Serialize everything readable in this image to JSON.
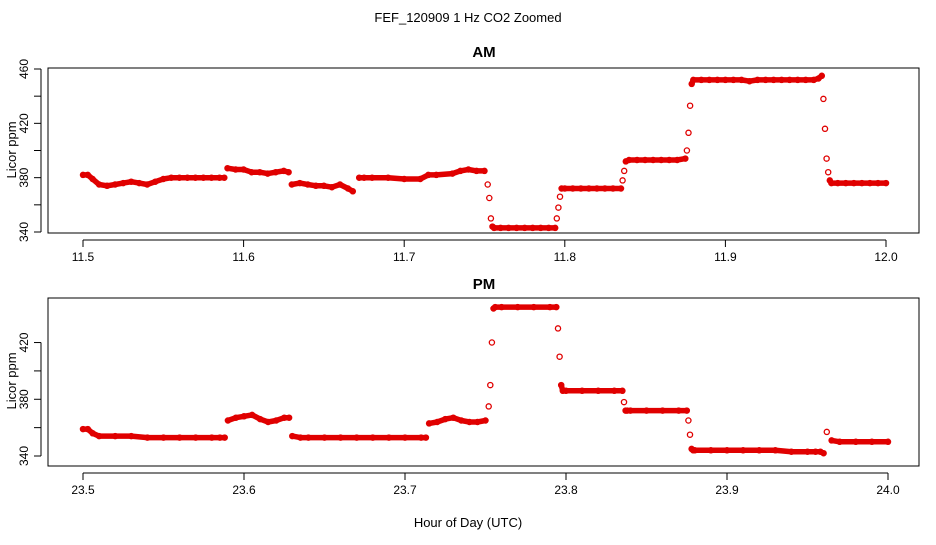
{
  "figure": {
    "title": "FEF_120909  1 Hz CO2 Zoomed",
    "xlabel": "Hour of Day (UTC)"
  },
  "chart_data": [
    {
      "type": "scatter",
      "title": "AM",
      "xlabel": "",
      "ylabel": "Licor ppm",
      "xlim": [
        11.5,
        12.0
      ],
      "ylim": [
        340,
        460
      ],
      "xticks": [
        11.5,
        11.6,
        11.7,
        11.8,
        11.9,
        12.0
      ],
      "xtick_labels": [
        "11.5",
        "11.6",
        "11.7",
        "11.8",
        "11.9",
        "12.0"
      ],
      "yticks": [
        340,
        360,
        380,
        400,
        420,
        440,
        460
      ],
      "ytick_labels": [
        "340",
        "",
        "380",
        "",
        "420",
        "",
        "460"
      ],
      "color": "#e00000",
      "marker": "open-circle",
      "grid": false,
      "series": [
        {
          "x": [
            11.5,
            11.503,
            11.506,
            11.51,
            11.515,
            11.52,
            11.525,
            11.53,
            11.535,
            11.54,
            11.545,
            11.55,
            11.555,
            11.56,
            11.565,
            11.57,
            11.575,
            11.58,
            11.585,
            11.588,
            11.59,
            11.595,
            11.6,
            11.605,
            11.61,
            11.615,
            11.62,
            11.625,
            11.628,
            11.63,
            11.635,
            11.64,
            11.645,
            11.65,
            11.655,
            11.66,
            11.665,
            11.668,
            11.672,
            11.675,
            11.68,
            11.69,
            11.7,
            11.71,
            11.715,
            11.72,
            11.73,
            11.735,
            11.74,
            11.745,
            11.75,
            11.752,
            11.753,
            11.754,
            11.755,
            11.756,
            11.76,
            11.765,
            11.77,
            11.775,
            11.78,
            11.785,
            11.79,
            11.794,
            11.795,
            11.796,
            11.797,
            11.798,
            11.8,
            11.805,
            11.81,
            11.815,
            11.82,
            11.825,
            11.83,
            11.835,
            11.836,
            11.837,
            11.838,
            11.84,
            11.845,
            11.85,
            11.855,
            11.86,
            11.865,
            11.87,
            11.875,
            11.876,
            11.877,
            11.878,
            11.879,
            11.88,
            11.885,
            11.89,
            11.895,
            11.9,
            11.905,
            11.91,
            11.915,
            11.92,
            11.925,
            11.93,
            11.935,
            11.94,
            11.945,
            11.95,
            11.955,
            11.958,
            11.96,
            11.961,
            11.962,
            11.963,
            11.964,
            11.965,
            11.966,
            11.97,
            11.975,
            11.98,
            11.985,
            11.99,
            11.995,
            12.0
          ],
          "y": [
            382,
            382,
            379,
            375,
            374,
            375,
            376,
            377,
            376,
            375,
            377,
            379,
            380,
            380,
            380,
            380,
            380,
            380,
            380,
            380,
            387,
            386,
            386,
            384,
            384,
            383,
            384,
            385,
            384,
            375,
            376,
            375,
            374,
            374,
            373,
            375,
            372,
            370,
            380,
            380,
            380,
            380,
            379,
            379,
            382,
            382,
            383,
            385,
            386,
            385,
            385,
            375,
            365,
            350,
            344,
            343,
            343,
            343,
            343,
            343,
            343,
            343,
            343,
            343,
            350,
            358,
            366,
            372,
            372,
            372,
            372,
            372,
            372,
            372,
            372,
            372,
            378,
            385,
            392,
            393,
            393,
            393,
            393,
            393,
            393,
            393,
            394,
            400,
            413,
            433,
            449,
            452,
            452,
            452,
            452,
            452,
            452,
            452,
            451,
            452,
            452,
            452,
            452,
            452,
            452,
            452,
            452,
            453,
            455,
            438,
            416,
            394,
            384,
            378,
            376,
            376,
            376,
            376,
            376,
            376,
            376,
            376
          ]
        }
      ]
    },
    {
      "type": "scatter",
      "title": "PM",
      "xlabel": "",
      "ylabel": "Licor ppm",
      "xlim": [
        23.5,
        24.0
      ],
      "ylim": [
        340,
        450
      ],
      "xticks": [
        23.5,
        23.6,
        23.7,
        23.8,
        23.9,
        24.0
      ],
      "xtick_labels": [
        "23.5",
        "23.6",
        "23.7",
        "23.8",
        "23.9",
        "24.0"
      ],
      "yticks": [
        340,
        360,
        380,
        400,
        420
      ],
      "ytick_labels": [
        "340",
        "",
        "380",
        "",
        "420"
      ],
      "color": "#e00000",
      "marker": "open-circle",
      "grid": false,
      "series": [
        {
          "x": [
            23.5,
            23.503,
            23.506,
            23.51,
            23.52,
            23.53,
            23.54,
            23.55,
            23.56,
            23.57,
            23.58,
            23.585,
            23.588,
            23.59,
            23.595,
            23.6,
            23.605,
            23.61,
            23.615,
            23.62,
            23.625,
            23.628,
            23.63,
            23.635,
            23.64,
            23.65,
            23.66,
            23.67,
            23.68,
            23.69,
            23.7,
            23.71,
            23.713,
            23.715,
            23.72,
            23.725,
            23.73,
            23.735,
            23.74,
            23.745,
            23.75,
            23.752,
            23.753,
            23.754,
            23.755,
            23.756,
            23.76,
            23.77,
            23.78,
            23.79,
            23.794,
            23.795,
            23.796,
            23.797,
            23.798,
            23.8,
            23.81,
            23.82,
            23.83,
            23.835,
            23.836,
            23.837,
            23.838,
            23.84,
            23.85,
            23.86,
            23.87,
            23.875,
            23.876,
            23.877,
            23.878,
            23.879,
            23.88,
            23.89,
            23.9,
            23.91,
            23.92,
            23.93,
            23.94,
            23.95,
            23.955,
            23.958,
            23.96,
            23.962,
            23.965,
            23.97,
            23.98,
            23.99,
            24.0
          ],
          "y": [
            359,
            359,
            356,
            354,
            354,
            354,
            353,
            353,
            353,
            353,
            353,
            353,
            353,
            365,
            367,
            368,
            369,
            366,
            364,
            365,
            367,
            367,
            354,
            353,
            353,
            353,
            353,
            353,
            353,
            353,
            353,
            353,
            353,
            363,
            364,
            366,
            367,
            365,
            364,
            364,
            365,
            375,
            390,
            420,
            444,
            445,
            445,
            445,
            445,
            445,
            445,
            430,
            410,
            390,
            386,
            386,
            386,
            386,
            386,
            386,
            378,
            372,
            372,
            372,
            372,
            372,
            372,
            372,
            365,
            355,
            345,
            344,
            344,
            344,
            344,
            344,
            344,
            344,
            343,
            343,
            343,
            343,
            342,
            357,
            351,
            350,
            350,
            350,
            350
          ]
        }
      ]
    }
  ]
}
